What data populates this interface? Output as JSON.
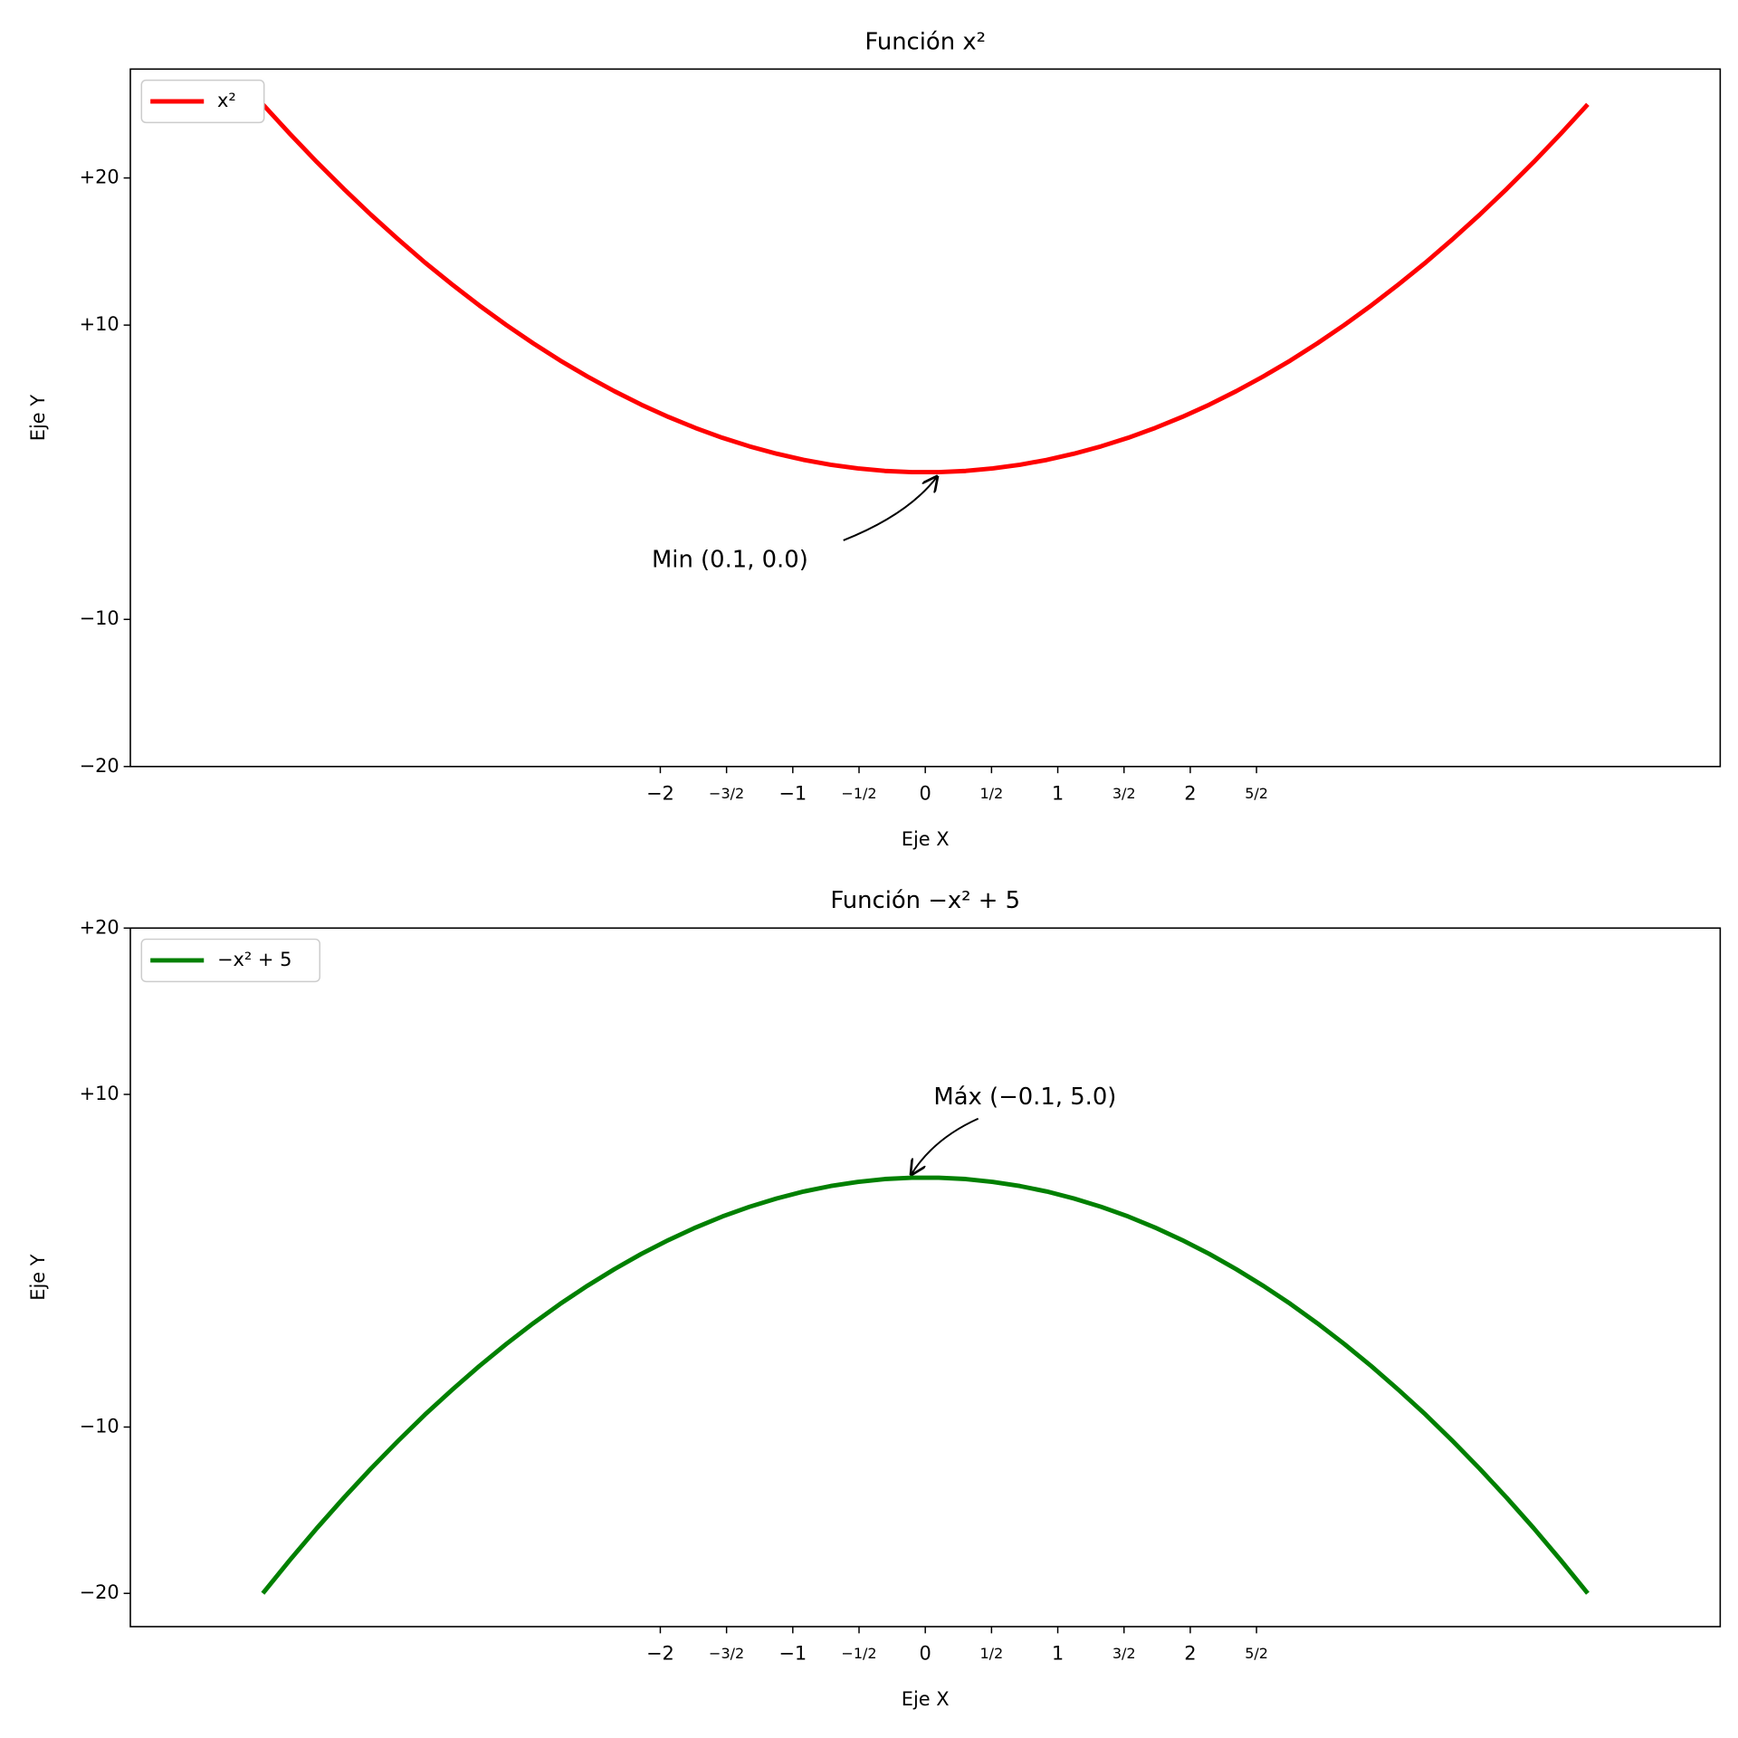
{
  "chart_data": [
    {
      "type": "line",
      "title": "Función x²",
      "xlabel": "Eje X",
      "ylabel": "Eje Y",
      "legend": "upper left",
      "x": [
        -5,
        -4.796,
        -4.592,
        -4.388,
        -4.184,
        -3.98,
        -3.776,
        -3.571,
        -3.367,
        -3.163,
        -2.959,
        -2.755,
        -2.551,
        -2.347,
        -2.143,
        -1.939,
        -1.735,
        -1.531,
        -1.327,
        -1.122,
        -0.918,
        -0.714,
        -0.51,
        -0.306,
        -0.102,
        0.102,
        0.306,
        0.51,
        0.714,
        0.918,
        1.122,
        1.327,
        1.531,
        1.735,
        1.939,
        2.143,
        2.347,
        2.551,
        2.755,
        2.959,
        3.163,
        3.367,
        3.571,
        3.776,
        3.98,
        4.184,
        4.388,
        4.592,
        4.796,
        5
      ],
      "series": [
        {
          "name": "x²",
          "color": "#ff0000",
          "values": [
            25,
            23,
            21.08,
            19.25,
            17.5,
            15.84,
            14.25,
            12.76,
            11.34,
            10.01,
            8.76,
            7.59,
            6.51,
            5.51,
            4.59,
            3.76,
            3.01,
            2.34,
            1.76,
            1.26,
            0.84,
            0.51,
            0.26,
            0.09,
            0.01,
            0.01,
            0.09,
            0.26,
            0.51,
            0.84,
            1.26,
            1.76,
            2.34,
            3.01,
            3.76,
            4.59,
            5.51,
            6.51,
            7.59,
            8.76,
            10.01,
            11.34,
            12.76,
            14.25,
            15.84,
            17.5,
            19.25,
            21.08,
            23,
            25
          ]
        }
      ],
      "xlim": [
        -6,
        6
      ],
      "ylim": [
        -20,
        27.4
      ],
      "xticks": [
        {
          "value": -2,
          "label": "−2"
        },
        {
          "value": -1.5,
          "label": "−3/2"
        },
        {
          "value": -1,
          "label": "−1"
        },
        {
          "value": -0.5,
          "label": "−1/2"
        },
        0,
        {
          "value": 0.5,
          "label": "1/2"
        },
        1,
        {
          "value": 1.5,
          "label": "3/2"
        },
        2,
        {
          "value": 2.5,
          "label": "5/2"
        }
      ],
      "yticks": [
        {
          "value": -20,
          "label": "−20"
        },
        {
          "value": -10,
          "label": "−10"
        },
        {
          "value": 10,
          "label": "+10"
        },
        {
          "value": 20,
          "label": "+20"
        }
      ],
      "annotations": [
        {
          "text": "Min (0.1, 0.0)"
        }
      ]
    },
    {
      "type": "line",
      "title": "Función −x² + 5",
      "xlabel": "Eje X",
      "ylabel": "Eje Y",
      "legend": "upper left",
      "x": [
        -5,
        -4.796,
        -4.592,
        -4.388,
        -4.184,
        -3.98,
        -3.776,
        -3.571,
        -3.367,
        -3.163,
        -2.959,
        -2.755,
        -2.551,
        -2.347,
        -2.143,
        -1.939,
        -1.735,
        -1.531,
        -1.327,
        -1.122,
        -0.918,
        -0.714,
        -0.51,
        -0.306,
        -0.102,
        0.102,
        0.306,
        0.51,
        0.714,
        0.918,
        1.122,
        1.327,
        1.531,
        1.735,
        1.939,
        2.143,
        2.347,
        2.551,
        2.755,
        2.959,
        3.163,
        3.367,
        3.571,
        3.776,
        3.98,
        4.184,
        4.388,
        4.592,
        4.796,
        5
      ],
      "series": [
        {
          "name": "−x² + 5",
          "color": "#008000",
          "values": [
            -20,
            -18,
            -16.08,
            -14.25,
            -12.5,
            -10.84,
            -9.25,
            -7.76,
            -6.34,
            -5.01,
            -3.76,
            -2.59,
            -1.51,
            -0.51,
            0.41,
            1.24,
            1.99,
            2.66,
            3.24,
            3.74,
            4.16,
            4.49,
            4.74,
            4.91,
            4.99,
            4.99,
            4.91,
            4.74,
            4.49,
            4.16,
            3.74,
            3.24,
            2.66,
            1.99,
            1.24,
            0.41,
            -0.51,
            -1.51,
            -2.59,
            -3.76,
            -5.01,
            -6.34,
            -7.76,
            -9.25,
            -10.84,
            -12.5,
            -14.25,
            -16.08,
            -18,
            -20
          ]
        }
      ],
      "xlim": [
        -6,
        6
      ],
      "ylim": [
        -22,
        20
      ],
      "xticks": [
        {
          "value": -2,
          "label": "−2"
        },
        {
          "value": -1.5,
          "label": "−3/2"
        },
        {
          "value": -1,
          "label": "−1"
        },
        {
          "value": -0.5,
          "label": "−1/2"
        },
        0,
        {
          "value": 0.5,
          "label": "1/2"
        },
        1,
        {
          "value": 1.5,
          "label": "3/2"
        },
        2,
        {
          "value": 2.5,
          "label": "5/2"
        }
      ],
      "yticks": [
        {
          "value": -20,
          "label": "−20"
        },
        {
          "value": -10,
          "label": "−10"
        },
        {
          "value": 10,
          "label": "+10"
        },
        {
          "value": 20,
          "label": "+20"
        }
      ],
      "annotations": [
        {
          "text": "Máx (−0.1, 5.0)"
        }
      ]
    }
  ]
}
